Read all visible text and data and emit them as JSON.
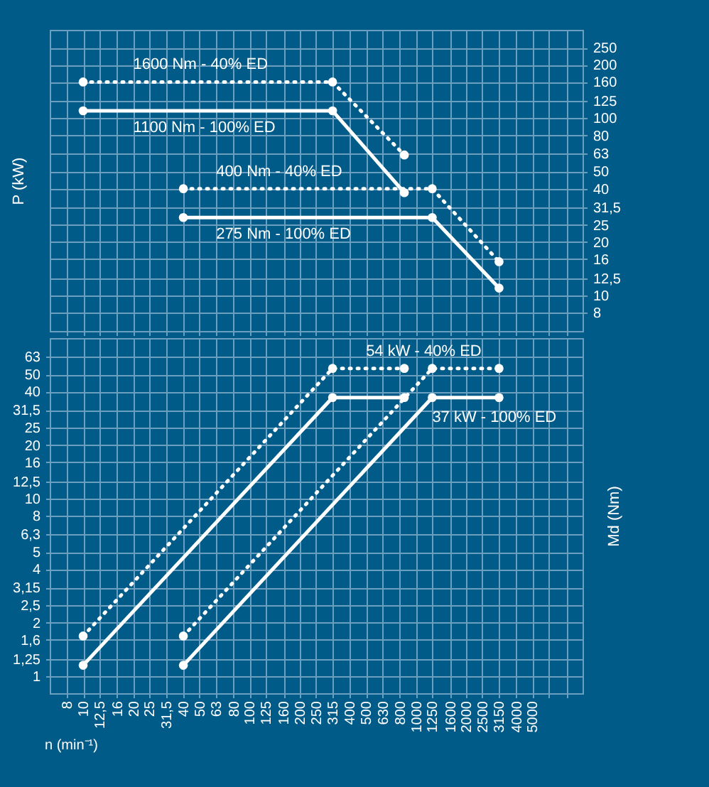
{
  "chart_data": [
    {
      "type": "line",
      "ylabel": "P (kW)",
      "xlim": [
        6.3,
        10000
      ],
      "ylim": [
        6.3,
        315
      ],
      "xticks": [
        {
          "value": 8,
          "label": null
        },
        {
          "value": 10,
          "label": null
        },
        {
          "value": 12.5,
          "label": null
        },
        {
          "value": 16,
          "label": null
        },
        {
          "value": 20,
          "label": null
        },
        {
          "value": 25,
          "label": null
        },
        {
          "value": 31.5,
          "label": null
        },
        {
          "value": 40,
          "label": null
        },
        {
          "value": 50,
          "label": null
        },
        {
          "value": 63,
          "label": null
        },
        {
          "value": 80,
          "label": null
        },
        {
          "value": 100,
          "label": null
        },
        {
          "value": 125,
          "label": null
        },
        {
          "value": 160,
          "label": null
        },
        {
          "value": 200,
          "label": null
        },
        {
          "value": 250,
          "label": null
        },
        {
          "value": 315,
          "label": null
        },
        {
          "value": 400,
          "label": null
        },
        {
          "value": 500,
          "label": null
        },
        {
          "value": 630,
          "label": null
        },
        {
          "value": 800,
          "label": null
        },
        {
          "value": 1000,
          "label": null
        },
        {
          "value": 1250,
          "label": null
        },
        {
          "value": 1600,
          "label": null
        },
        {
          "value": 2000,
          "label": null
        },
        {
          "value": 2500,
          "label": null
        },
        {
          "value": 3150,
          "label": null
        },
        {
          "value": 4000,
          "label": null
        },
        {
          "value": 5000,
          "label": null
        },
        {
          "value": 6300,
          "label": null
        },
        {
          "value": 8000,
          "label": null
        }
      ],
      "yticks": [
        8,
        10,
        {
          "value": 12.5,
          "label": "12,5"
        },
        16,
        20,
        25,
        {
          "value": 31.5,
          "label": "31,5"
        },
        40,
        50,
        63,
        80,
        100,
        125,
        160,
        200,
        250
      ],
      "tick_labels": "y",
      "grid": true,
      "marker": "circle",
      "log": "xy",
      "annotations": [
        {
          "text": "1600 Nm - 40% ED",
          "x": 20,
          "y": 160
        },
        {
          "text": "1100 Nm - 100% ED",
          "x": 20,
          "y": 110
        },
        {
          "text": "400 Nm - 40% ED",
          "x": 63,
          "y": 40
        },
        {
          "text": "275 Nm - 100% ED",
          "x": 63,
          "y": 27.5
        }
      ],
      "series": [
        {
          "color": "#ffffff",
          "line_style": "dotted",
          "x": [
            10,
            315,
            850
          ],
          "values": [
            160,
            160,
            62
          ]
        },
        {
          "color": "#ffffff",
          "line_style": "solid",
          "x": [
            10,
            315,
            850
          ],
          "values": [
            110,
            110,
            38
          ]
        },
        {
          "color": "#ffffff",
          "line_style": "dotted",
          "x": [
            40,
            1250,
            3150
          ],
          "values": [
            40,
            40,
            15.5
          ]
        },
        {
          "color": "#ffffff",
          "line_style": "solid",
          "x": [
            40,
            1250,
            3150
          ],
          "values": [
            27.5,
            27.5,
            11
          ]
        }
      ]
    },
    {
      "type": "line",
      "ylabel": "Md (Nm)",
      "xlabel": "n (min⁻¹)",
      "xlim": [
        6.3,
        10000
      ],
      "ylim": [
        0.8,
        80
      ],
      "xticks": [
        8,
        10,
        {
          "value": 12.5,
          "label": "12,5"
        },
        16,
        20,
        25,
        {
          "value": 31.5,
          "label": "31,5"
        },
        40,
        50,
        63,
        80,
        100,
        125,
        160,
        200,
        250,
        315,
        400,
        500,
        630,
        800,
        1000,
        1250,
        1600,
        2000,
        2500,
        3150,
        4000,
        5000,
        {
          "value": 6300,
          "label": null
        },
        {
          "value": 8000,
          "label": null
        }
      ],
      "yticks": [
        1,
        {
          "value": 1.25,
          "label": "1,25"
        },
        {
          "value": 1.6,
          "label": "1,6"
        },
        2,
        {
          "value": 2.5,
          "label": "2,5"
        },
        {
          "value": 3.15,
          "label": "3,15"
        },
        4,
        5,
        {
          "value": 6.3,
          "label": "6,3"
        },
        8,
        10,
        {
          "value": 12.5,
          "label": "12,5"
        },
        16,
        20,
        25,
        {
          "value": 31.5,
          "label": "31,5"
        },
        40,
        50,
        63
      ],
      "grid": true,
      "marker": "circle",
      "log": "xy",
      "annotations": [
        {
          "text": "54 kW - 40% ED",
          "x": 500,
          "y": 54
        },
        {
          "text": "37 kW - 100% ED",
          "x": 1250,
          "y": 37
        }
      ],
      "series": [
        {
          "color": "#ffffff",
          "line_style": "dotted",
          "x": [
            10,
            315,
            850
          ],
          "values": [
            1.68,
            54,
            54
          ]
        },
        {
          "color": "#ffffff",
          "line_style": "solid",
          "x": [
            10,
            315,
            850
          ],
          "values": [
            1.15,
            37,
            37
          ]
        },
        {
          "color": "#ffffff",
          "line_style": "dotted",
          "x": [
            40,
            1250,
            3150
          ],
          "values": [
            1.68,
            54,
            54
          ]
        },
        {
          "color": "#ffffff",
          "line_style": "solid",
          "x": [
            40,
            1250,
            3150
          ],
          "values": [
            1.15,
            37,
            37
          ]
        }
      ]
    }
  ]
}
